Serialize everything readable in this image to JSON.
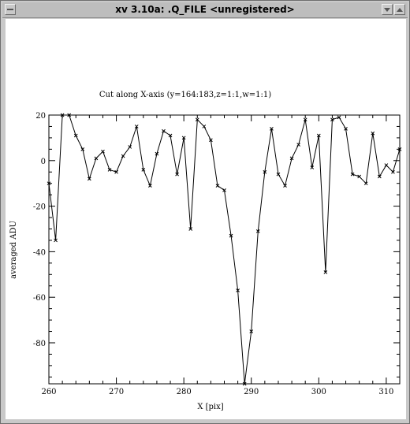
{
  "window": {
    "title": "xv 3.10a: .Q_FILE <unregistered>"
  },
  "icons": {
    "menu": "window-menu-icon",
    "minimize": "minimize-icon",
    "maximize": "maximize-icon"
  },
  "chart_data": {
    "type": "line",
    "title": "Cut along X-axis (y=164:183,z=1:1,w=1:1)",
    "xlabel": "X [pix]",
    "ylabel": "averaged ADU",
    "xlim": [
      260,
      312
    ],
    "ylim": [
      -98,
      20
    ],
    "xticks": [
      260,
      270,
      280,
      290,
      300,
      310
    ],
    "yticks": [
      20,
      0,
      -20,
      -40,
      -60,
      -80
    ],
    "marker": "x",
    "grid": false,
    "series": [
      {
        "x": [
          260,
          261,
          262,
          263,
          264,
          265,
          266,
          267,
          268,
          269,
          270,
          271,
          272,
          273,
          274,
          275,
          276,
          277,
          278,
          279,
          280,
          281,
          282,
          283,
          284,
          285,
          286,
          287,
          288,
          289,
          290,
          291,
          292,
          293,
          294,
          295,
          296,
          297,
          298,
          299,
          300,
          301,
          302,
          303,
          304,
          305,
          306,
          307,
          308,
          309,
          310,
          311,
          312
        ],
        "values": [
          -10,
          -35,
          20,
          20,
          11,
          5,
          -8,
          1,
          4,
          -4,
          -5,
          2,
          6,
          15,
          -4,
          -11,
          3,
          13,
          11,
          -6,
          10,
          -30,
          18,
          15,
          9,
          -11,
          -13,
          -33,
          -57,
          -98,
          -75,
          -31,
          -5,
          14,
          -6,
          -11,
          1,
          7,
          18,
          -3,
          11,
          -49,
          18,
          19,
          14,
          -6,
          -7,
          -10,
          12,
          -7,
          -2,
          -5,
          5
        ]
      }
    ],
    "colors": {
      "line": "#000000",
      "background": "#ffffff"
    }
  }
}
